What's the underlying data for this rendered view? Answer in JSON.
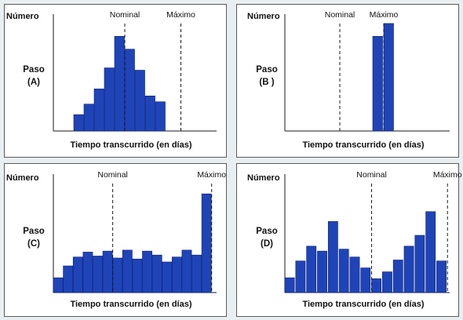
{
  "chart_data": [
    {
      "type": "bar",
      "ylabel": "Número",
      "panel_label": "Paso",
      "panel_letter": "(A)",
      "xlabel": "Tiempo transcurrido (en días)",
      "markers": [
        {
          "label": "Nominal",
          "x": 7
        },
        {
          "label": "Máximo",
          "x": 12.5
        }
      ],
      "x": [
        2,
        3,
        4,
        5,
        6,
        7,
        8,
        9,
        10
      ],
      "values": [
        1.4,
        2.3,
        3.6,
        5.4,
        8.1,
        7.0,
        5.2,
        3.0,
        2.5
      ],
      "xlim": [
        0,
        16
      ],
      "ylim": [
        0,
        10
      ]
    },
    {
      "type": "bar",
      "ylabel": "Número",
      "panel_label": "Paso",
      "panel_letter": "(B )",
      "xlabel": "Tiempo transcurrido (en días)",
      "markers": [
        {
          "label": "Nominal",
          "x": 5
        },
        {
          "label": "Máximo",
          "x": 9
        }
      ],
      "x": [
        8,
        9
      ],
      "values": [
        8.1,
        9.2
      ],
      "xlim": [
        0,
        15
      ],
      "ylim": [
        0,
        10
      ]
    },
    {
      "type": "bar",
      "ylabel": "Número",
      "panel_label": "Paso",
      "panel_letter": "(C)",
      "xlabel": "Tiempo transcurrido (en días)",
      "markers": [
        {
          "label": "Nominal",
          "x": 6
        },
        {
          "label": "Máximo",
          "x": 16
        }
      ],
      "x": [
        0,
        1,
        2,
        3,
        4,
        5,
        6,
        7,
        8,
        9,
        10,
        11,
        12,
        13,
        14,
        15,
        16
      ],
      "values": [
        1.5,
        2.7,
        3.6,
        4.1,
        3.7,
        4.2,
        3.5,
        4.3,
        3.4,
        4.2,
        3.8,
        3.1,
        3.6,
        4.3,
        3.8,
        10.0,
        0
      ],
      "xlim": [
        0,
        16.5
      ],
      "ylim": [
        0,
        12
      ]
    },
    {
      "type": "bar",
      "ylabel": "Número",
      "panel_label": "Paso",
      "panel_letter": "(D)",
      "xlabel": "Tiempo transcurrido (en días)",
      "markers": [
        {
          "label": "Nominal",
          "x": 8
        },
        {
          "label": "Máximo",
          "x": 15
        }
      ],
      "x": [
        0,
        1,
        2,
        3,
        4,
        5,
        6,
        7,
        8,
        9,
        10,
        11,
        12,
        13,
        14
      ],
      "values": [
        1.5,
        3.2,
        4.7,
        4.2,
        7.2,
        4.4,
        3.6,
        2.5,
        1.4,
        2.1,
        3.3,
        4.7,
        5.8,
        8.2,
        3.2
      ],
      "xlim": [
        0,
        15.2
      ],
      "ylim": [
        0,
        12
      ]
    }
  ]
}
